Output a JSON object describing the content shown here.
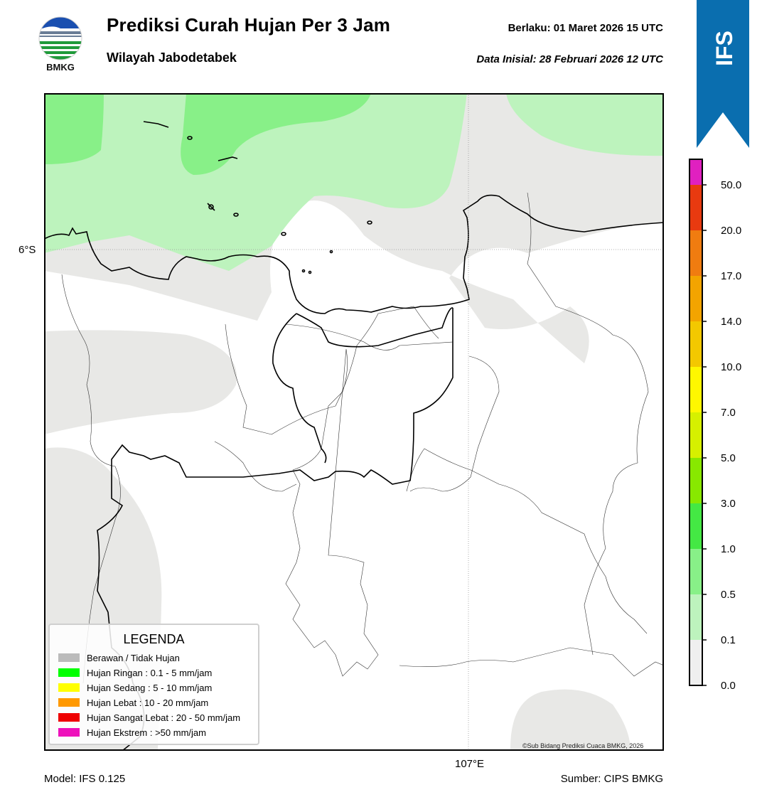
{
  "header": {
    "title": "Prediksi Curah Hujan Per 3 Jam",
    "subtitle": "Wilayah Jabodetabek",
    "valid_time": "Berlaku:  01 Maret 2026 15 UTC",
    "initial_time": "Data Inisial:  28 Februari 2026 12 UTC",
    "logo_text": "BMKG"
  },
  "ribbon": {
    "text": "IFS",
    "color": "#0a6eaf"
  },
  "map": {
    "lat_label": "6°S",
    "lon_label": "107°E",
    "copyright": "©Sub Bidang Prediksi Cuaca BMKG, 2026",
    "colors": {
      "cloudy": "#e8e8e6",
      "light": "#bdf3bd",
      "moderate": "#88f088",
      "water": "#ffffff"
    }
  },
  "colorbar": {
    "levels": [
      "0.0",
      "0.1",
      "0.5",
      "1.0",
      "3.0",
      "5.0",
      "7.0",
      "10.0",
      "14.0",
      "17.0",
      "20.0",
      "50.0"
    ],
    "colors": [
      "#efefef",
      "#bdf3bd",
      "#88f088",
      "#44e844",
      "#88e800",
      "#d6f000",
      "#fff700",
      "#f3c800",
      "#f3a400",
      "#f07c10",
      "#e83a10",
      "#e020c0"
    ]
  },
  "legend": {
    "title": "LEGENDA",
    "items": [
      {
        "label": "Berawan / Tidak Hujan",
        "color": "#bbbbbb"
      },
      {
        "label": "Hujan Ringan : 0.1 - 5 mm/jam",
        "color": "#00ff00"
      },
      {
        "label": "Hujan Sedang : 5 - 10 mm/jam",
        "color": "#ffff00"
      },
      {
        "label": "Hujan Lebat : 10 - 20 mm/jam",
        "color": "#ff9900"
      },
      {
        "label": "Hujan Sangat Lebat : 20 - 50 mm/jam",
        "color": "#ee0000"
      },
      {
        "label": "Hujan Ekstrem : >50 mm/jam",
        "color": "#ee11bb"
      }
    ]
  },
  "footer": {
    "model": "Model: IFS 0.125",
    "source": "Sumber: CIPS BMKG"
  }
}
